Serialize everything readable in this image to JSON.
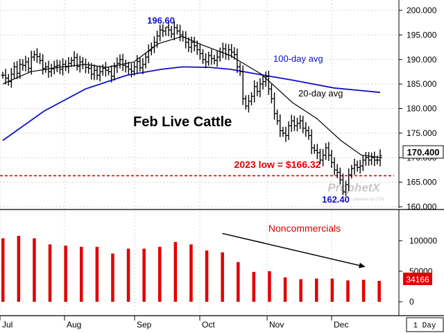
{
  "chart_data": [
    {
      "type": "ohlc",
      "title": "Feb Live Cattle",
      "y_axis_side": "right",
      "ylim": [
        158.5,
        202.5
      ],
      "y_ticks": [
        "160.000",
        "165.000",
        "170.000",
        "175.000",
        "180.000",
        "185.000",
        "190.000",
        "195.000",
        "200.000"
      ],
      "y_tick_values": [
        160,
        165,
        170,
        175,
        180,
        185,
        190,
        195,
        200
      ],
      "last_price_label": "170.400",
      "last_price": 170.4,
      "x_months": [
        "Jul",
        "Aug",
        "Sep",
        "Oct",
        "Nov",
        "Dec"
      ],
      "x_period_label": "1 Day",
      "close_series": [
        186.8,
        186.2,
        185.5,
        187.0,
        188.5,
        187.2,
        189.0,
        188.8,
        189.5,
        188.2,
        190.5,
        191.0,
        190.6,
        189.8,
        188.2,
        188.5,
        187.5,
        188.1,
        188.6,
        188.8,
        188.0,
        189.0,
        188.5,
        189.2,
        189.8,
        190.4,
        188.6,
        189.5,
        189.0,
        188.4,
        188.2,
        187.0,
        187.8,
        186.8,
        187.5,
        188.2,
        187.8,
        187.5,
        186.6,
        188.5,
        189.2,
        190.0,
        188.8,
        188.5,
        188.0,
        187.6,
        188.5,
        189.6,
        188.3,
        189.0,
        190.5,
        191.8,
        192.5,
        193.5,
        194.8,
        196.0,
        195.8,
        196.6,
        196.0,
        195.2,
        196.5,
        195.8,
        195.0,
        194.5,
        193.5,
        192.5,
        193.5,
        192.8,
        192.0,
        191.2,
        190.0,
        189.5,
        190.8,
        190.2,
        189.8,
        190.5,
        191.5,
        192.2,
        191.0,
        192.0,
        191.5,
        191.0,
        188.5,
        187.5,
        182.0,
        180.5,
        181.5,
        182.5,
        184.5,
        183.5,
        185.0,
        185.5,
        186.5,
        184.0,
        182.0,
        179.0,
        177.5,
        175.5,
        175.0,
        174.5,
        176.5,
        177.5,
        176.5,
        177.0,
        177.5,
        176.0,
        175.5,
        174.5,
        172.0,
        171.5,
        171.0,
        169.5,
        170.5,
        172.0,
        170.5,
        169.0,
        167.5,
        167.0,
        165.5,
        163.0,
        164.5,
        166.5,
        167.8,
        168.5,
        168.0,
        168.3,
        169.5,
        170.0,
        169.5,
        170.0,
        169.5,
        169.5,
        170.4
      ],
      "series": [
        {
          "name": "100-day avg",
          "line_color": "#1010c8",
          "values": [
            [
              0,
              173.5
            ],
            [
              60,
              179.5
            ],
            [
              120,
              184.0
            ],
            [
              180,
              186.8
            ],
            [
              230,
              188.0
            ],
            [
              260,
              188.5
            ],
            [
              300,
              188.4
            ],
            [
              330,
              188.0
            ],
            [
              370,
              187.0
            ],
            [
              420,
              185.8
            ],
            [
              480,
              184.2
            ],
            [
              547,
              183.3
            ]
          ]
        },
        {
          "name": "20-day avg",
          "line_color": "#000000",
          "values": [
            [
              0,
              185.0
            ],
            [
              40,
              187.5
            ],
            [
              80,
              188.4
            ],
            [
              120,
              189.0
            ],
            [
              150,
              188.4
            ],
            [
              190,
              189.5
            ],
            [
              225,
              193.2
            ],
            [
              260,
              194.7
            ],
            [
              290,
              192.9
            ],
            [
              330,
              190.8
            ],
            [
              345,
              189.5
            ],
            [
              375,
              187.0
            ],
            [
              420,
              181.2
            ],
            [
              455,
              178.0
            ],
            [
              490,
              173.5
            ],
            [
              520,
              170.5
            ],
            [
              550,
              170.0
            ]
          ]
        }
      ],
      "reference_line": {
        "value": 166.32,
        "label": "2023 low = $166.32",
        "color": "#e00000"
      },
      "annotations": {
        "high_label": "196.60",
        "high_value": 196.6,
        "low_label": "162.40",
        "low_value": 162.4,
        "label_100day": "100-day avg",
        "label_20day": "20-day avg"
      },
      "watermark": {
        "main": "ProphetX",
        "sub": "powered by DTN"
      },
      "colors": {
        "price_bars": "#000000",
        "ma100": "#1010c8",
        "ma20": "#000000",
        "reference": "#e00000",
        "annotation_blue": "#1010c8",
        "annotation_red": "#e00000"
      }
    },
    {
      "type": "bar",
      "title": "Noncommercials",
      "y_axis_side": "right",
      "ylim": [
        -15000,
        135000
      ],
      "y_ticks": [
        "100000",
        "50000",
        "0"
      ],
      "y_tick_values": [
        100000,
        50000,
        0
      ],
      "values": [
        104000,
        108000,
        104000,
        94000,
        92000,
        90000,
        90000,
        79000,
        87000,
        87000,
        90000,
        98000,
        94000,
        84000,
        81000,
        65000,
        49000,
        50000,
        40000,
        37000,
        38000,
        38000,
        35000,
        36000,
        34166
      ],
      "last_value_label": "34166",
      "last_value": 34166,
      "bar_color": "#e00000",
      "trend_arrow": {
        "from": [
          14,
          112000
        ],
        "to": [
          23,
          58000
        ]
      }
    }
  ]
}
